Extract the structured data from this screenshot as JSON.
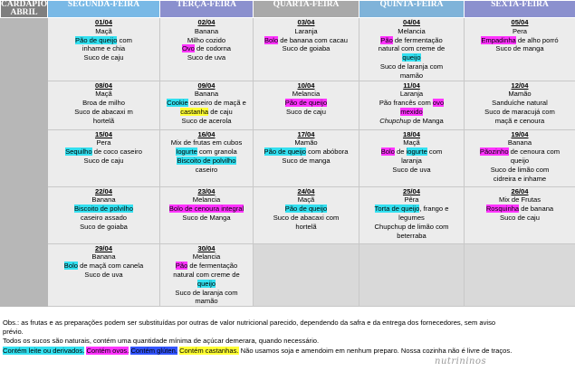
{
  "header": {
    "corner": "CARDÁPIO ABRIL",
    "days": [
      "SEGUNDA-FEIRA",
      "TERÇA-FEIRA",
      "QUARTA-FEIRA",
      "QUINTA-FEIRA",
      "SEXTA-FEIRA"
    ]
  },
  "weeks": [
    [
      {
        "date": "01/04",
        "lines": [
          [
            {
              "t": "Maçã"
            }
          ],
          [
            {
              "t": "Pão de queijo",
              "h": "c"
            },
            {
              "t": " com"
            }
          ],
          [
            {
              "t": "inhame e chia"
            }
          ],
          [
            {
              "t": "Suco de caju"
            }
          ]
        ]
      },
      {
        "date": "02/04",
        "lines": [
          [
            {
              "t": "Banana"
            }
          ],
          [
            {
              "t": "Milho cozido"
            }
          ],
          [
            {
              "t": "Ovo",
              "h": "m"
            },
            {
              "t": " de codorna"
            }
          ],
          [
            {
              "t": "Suco de uva"
            }
          ]
        ]
      },
      {
        "date": "03/04",
        "lines": [
          [
            {
              "t": "Laranja"
            }
          ],
          [
            {
              "t": "Bolo",
              "h": "m"
            },
            {
              "t": " de banana com cacau"
            }
          ],
          [
            {
              "t": "Suco de goiaba"
            }
          ]
        ]
      },
      {
        "date": "04/04",
        "lines": [
          [
            {
              "t": "Melancia"
            }
          ],
          [
            {
              "t": "Pão",
              "h": "m"
            },
            {
              "t": " de fermentação"
            }
          ],
          [
            {
              "t": "natural com creme de"
            }
          ],
          [
            {
              "t": "queijo",
              "h": "c"
            }
          ],
          [
            {
              "t": "Suco de laranja com"
            }
          ],
          [
            {
              "t": "mamão"
            }
          ]
        ]
      },
      {
        "date": "05/04",
        "lines": [
          [
            {
              "t": "Pera"
            }
          ],
          [
            {
              "t": "Empadinha",
              "h": "m"
            },
            {
              "t": " de alho porró"
            }
          ],
          [
            {
              "t": "Suco de manga"
            }
          ]
        ]
      }
    ],
    [
      {
        "date": "08/04",
        "lines": [
          [
            {
              "t": "Maçã"
            }
          ],
          [
            {
              "t": "Broa de milho"
            }
          ],
          [
            {
              "t": "Suco de abacaxi m"
            }
          ],
          [
            {
              "t": "hortelã"
            }
          ]
        ]
      },
      {
        "date": "09/04",
        "lines": [
          [
            {
              "t": "Banana"
            }
          ],
          [
            {
              "t": "Cookie",
              "h": "c"
            },
            {
              "t": " caseiro de maçã e"
            }
          ],
          [
            {
              "t": "castanha",
              "h": "y"
            },
            {
              "t": " de caju"
            }
          ],
          [
            {
              "t": "Suco de acerola"
            }
          ]
        ]
      },
      {
        "date": "10/04",
        "lines": [
          [
            {
              "t": "Melancia"
            }
          ],
          [
            {
              "t": "Pão de queijo",
              "h": "m"
            }
          ],
          [
            {
              "t": "Suco de caju"
            }
          ]
        ]
      },
      {
        "date": "11/04",
        "lines": [
          [
            {
              "t": "Laranja"
            }
          ],
          [
            {
              "t": "Pão francês com "
            },
            {
              "t": "ovo",
              "h": "m"
            }
          ],
          [
            {
              "t": "mexido",
              "h": "m"
            }
          ],
          [
            {
              "t": "Chupchup",
              "i": true
            },
            {
              "t": " de Manga"
            }
          ]
        ]
      },
      {
        "date": "12/04",
        "lines": [
          [
            {
              "t": "Mamão"
            }
          ],
          [
            {
              "t": "Sanduíche natural"
            }
          ],
          [
            {
              "t": "Suco de maracujá com"
            }
          ],
          [
            {
              "t": "maçã e cenoura"
            }
          ]
        ]
      }
    ],
    [
      {
        "date": "15/04",
        "lines": [
          [
            {
              "t": "Pera"
            }
          ],
          [
            {
              "t": "Sequilho",
              "h": "c"
            },
            {
              "t": " de coco caseiro"
            }
          ],
          [
            {
              "t": "Suco de caju"
            }
          ]
        ]
      },
      {
        "date": "16/04",
        "lines": [
          [
            {
              "t": "Mix de frutas em cubos"
            }
          ],
          [
            {
              "t": "Iogurte",
              "h": "c"
            },
            {
              "t": " com granola"
            }
          ],
          [
            {
              "t": "Biscoito de polvilho",
              "h": "c"
            }
          ],
          [
            {
              "t": "caseiro"
            }
          ]
        ]
      },
      {
        "date": "17/04",
        "lines": [
          [
            {
              "t": "Mamão"
            }
          ],
          [
            {
              "t": "Pão de queijo",
              "h": "c"
            },
            {
              "t": " com abóbora"
            }
          ],
          [
            {
              "t": "Suco de manga"
            }
          ]
        ]
      },
      {
        "date": "18/04",
        "lines": [
          [
            {
              "t": "Maçã"
            }
          ],
          [
            {
              "t": "Bolo",
              "h": "m"
            },
            {
              "t": " de "
            },
            {
              "t": "iogurte",
              "h": "c"
            },
            {
              "t": " com"
            }
          ],
          [
            {
              "t": "laranja"
            }
          ],
          [
            {
              "t": "Suco de uva"
            }
          ]
        ]
      },
      {
        "date": "19/04",
        "lines": [
          [
            {
              "t": "Banana"
            }
          ],
          [
            {
              "t": "Pãozinho",
              "h": "m"
            },
            {
              "t": " de cenoura com"
            }
          ],
          [
            {
              "t": "queijo"
            }
          ],
          [
            {
              "t": "Suco de limão com"
            }
          ],
          [
            {
              "t": "cidreira e inhame"
            }
          ]
        ]
      }
    ],
    [
      {
        "date": "22/04",
        "lines": [
          [
            {
              "t": "Banana"
            }
          ],
          [
            {
              "t": "Biscoito de polvilho",
              "h": "c"
            }
          ],
          [
            {
              "t": "caseiro assado"
            }
          ],
          [
            {
              "t": "Suco de goiaba"
            }
          ]
        ]
      },
      {
        "date": "23/04",
        "lines": [
          [
            {
              "t": "Melancia"
            }
          ],
          [
            {
              "t": "Bolo de cenoura integral",
              "h": "m"
            }
          ],
          [
            {
              "t": "Suco de Manga"
            }
          ]
        ]
      },
      {
        "date": "24/04",
        "lines": [
          [
            {
              "t": "Maçã"
            }
          ],
          [
            {
              "t": "Pão de queijo",
              "h": "c"
            }
          ],
          [
            {
              "t": "Suco de abacaxi com"
            }
          ],
          [
            {
              "t": "hortelã"
            }
          ]
        ]
      },
      {
        "date": "25/04",
        "lines": [
          [
            {
              "t": "Pêra"
            }
          ],
          [
            {
              "t": "Torta de queijo",
              "h": "c"
            },
            {
              "t": ", frango e"
            }
          ],
          [
            {
              "t": "legumes"
            }
          ],
          [
            {
              "t": "Chupchup de limão com"
            }
          ],
          [
            {
              "t": "beterraba"
            }
          ]
        ]
      },
      {
        "date": "26/04",
        "lines": [
          [
            {
              "t": "Mix de Frutas"
            }
          ],
          [
            {
              "t": "Rosquinha",
              "h": "m"
            },
            {
              "t": " de banana"
            }
          ],
          [
            {
              "t": "Suco de caju"
            }
          ]
        ]
      }
    ],
    [
      {
        "date": "29/04",
        "lines": [
          [
            {
              "t": "Banana"
            }
          ],
          [
            {
              "t": "Bolo",
              "h": "c"
            },
            {
              "t": " de maçã com canela"
            }
          ],
          [
            {
              "t": "Suco de uva"
            }
          ]
        ]
      },
      {
        "date": "30/04",
        "lines": [
          [
            {
              "t": "Melancia"
            }
          ],
          [
            {
              "t": "Pão",
              "h": "m"
            },
            {
              "t": " de fermentação"
            }
          ],
          [
            {
              "t": "natural com creme de"
            }
          ],
          [
            {
              "t": "queijo",
              "h": "c"
            }
          ],
          [
            {
              "t": "Suco de laranja com"
            }
          ],
          [
            {
              "t": "mamão"
            }
          ]
        ]
      },
      null,
      null,
      null
    ]
  ],
  "notes": [
    [
      {
        "t": "Obs.: as frutas e as preparações podem ser substituídas por outras de valor nutricional parecido, dependendo da safra e da entrega dos fornecedores, sem aviso"
      }
    ],
    [
      {
        "t": "prévio."
      }
    ],
    [
      {
        "t": "Todos os sucos são naturais, contém uma quantidade mínima de açúcar demerara, quando necessário."
      }
    ],
    [
      {
        "t": "Contém leite ou derivados.",
        "h": "c"
      },
      {
        "t": " "
      },
      {
        "t": "Contém ovos.",
        "h": "m"
      },
      {
        "t": " "
      },
      {
        "t": "Contém glúten.",
        "h": "b"
      },
      {
        "t": " "
      },
      {
        "t": "Contém castanhas.",
        "h": "y"
      },
      {
        "t": " Não usamos soja e amendoim em nenhum preparo. Nossa cozinha não é livre de traços."
      }
    ]
  ],
  "logo": "nutrininos",
  "colors": {
    "milk": "#33e0f0",
    "egg": "#ff33ff",
    "gluten": "#3355ff",
    "nuts": "#ffff33"
  }
}
